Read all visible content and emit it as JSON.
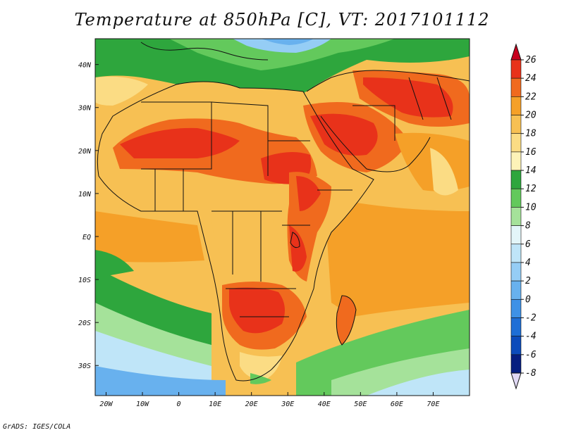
{
  "title": "Temperature at 850hPa [C], VT: 2017101112",
  "credit": "GrADS: IGES/COLA",
  "map": {
    "variable": "Temperature at 850hPa",
    "units": "C",
    "valid_time": "2017101112",
    "lon_range": [
      -23,
      80
    ],
    "lat_range": [
      -37,
      46
    ],
    "lon_ticks": [
      {
        "value": -20,
        "label": "20W"
      },
      {
        "value": -10,
        "label": "10W"
      },
      {
        "value": 0,
        "label": "0"
      },
      {
        "value": 10,
        "label": "10E"
      },
      {
        "value": 20,
        "label": "20E"
      },
      {
        "value": 30,
        "label": "30E"
      },
      {
        "value": 40,
        "label": "40E"
      },
      {
        "value": 50,
        "label": "50E"
      },
      {
        "value": 60,
        "label": "60E"
      },
      {
        "value": 70,
        "label": "70E"
      }
    ],
    "lat_ticks": [
      {
        "value": 40,
        "label": "40N"
      },
      {
        "value": 30,
        "label": "30N"
      },
      {
        "value": 20,
        "label": "20N"
      },
      {
        "value": 10,
        "label": "10N"
      },
      {
        "value": 0,
        "label": "EQ"
      },
      {
        "value": -10,
        "label": "10S"
      },
      {
        "value": -20,
        "label": "20S"
      },
      {
        "value": -30,
        "label": "30S"
      }
    ],
    "colorbar": {
      "labels": [
        "26",
        "24",
        "22",
        "20",
        "18",
        "16",
        "14",
        "12",
        "10",
        "8",
        "6",
        "4",
        "2",
        "0",
        "-2",
        "-4",
        "-6",
        "-8"
      ],
      "colors_top_to_bottom": [
        "#c8001e",
        "#e8321a",
        "#f06a1e",
        "#f5a028",
        "#f7c053",
        "#fbdc84",
        "#fdf3b8",
        "#2ea63d",
        "#63c95c",
        "#a5e29a",
        "#e3f6f9",
        "#bfe5f8",
        "#95cdf5",
        "#68b1ee",
        "#3e91e6",
        "#1e6ed6",
        "#0c4bbb",
        "#061e80"
      ],
      "under_color": "#e0d8f4"
    }
  }
}
